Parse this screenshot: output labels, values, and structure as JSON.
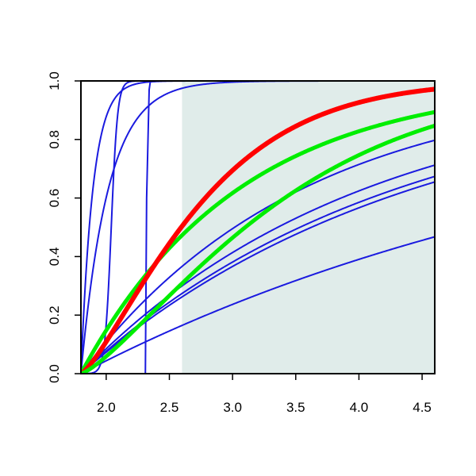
{
  "chart_data": {
    "type": "line",
    "title": "",
    "xlabel": "",
    "ylabel": "",
    "xlim": [
      1.8,
      4.6
    ],
    "ylim": [
      0,
      1
    ],
    "grid": false,
    "x_ticks": [
      "2.0",
      "2.5",
      "3.0",
      "3.5",
      "4.0",
      "4.5"
    ],
    "y_ticks": [
      "0.0",
      "0.2",
      "0.4",
      "0.6",
      "0.8",
      "1.0"
    ],
    "shaded_region": {
      "x_from": 2.6,
      "x_to": 4.6,
      "color": "#e0ecea"
    },
    "colors": {
      "blue": "#1a1adf",
      "red": "#ff0000",
      "green": "#00ee00"
    },
    "series": [
      {
        "color": "blue",
        "width": 2,
        "type": "step",
        "x0": 2.31,
        "x1": 2.35
      },
      {
        "color": "blue",
        "width": 2,
        "type": "logistic",
        "x0": 1.8,
        "m": 2.04,
        "s": 0.025
      },
      {
        "color": "blue",
        "width": 2,
        "type": "exp",
        "x0": 1.8,
        "k": 4.6
      },
      {
        "color": "blue",
        "width": 2,
        "type": "exp",
        "x0": 1.8,
        "k": 10.5
      },
      {
        "color": "blue",
        "width": 2,
        "type": "exp",
        "x0": 1.8,
        "k": 0.225
      },
      {
        "color": "blue",
        "width": 2,
        "type": "exp",
        "x0": 1.8,
        "k": 0.38
      },
      {
        "color": "blue",
        "width": 2,
        "type": "exp",
        "x0": 1.8,
        "k": 0.4
      },
      {
        "color": "blue",
        "width": 2,
        "type": "exp",
        "x0": 1.8,
        "k": 0.445
      },
      {
        "color": "blue",
        "width": 2,
        "type": "exp",
        "x0": 1.8,
        "k": 0.57
      },
      {
        "color": "green",
        "width": 5,
        "type": "exp",
        "x0": 1.8,
        "k": 0.8
      },
      {
        "color": "red",
        "width": 6,
        "type": "weibull",
        "x0": 1.8,
        "lambda": 0.95,
        "shape": 1.3
      },
      {
        "color": "green",
        "width": 5,
        "type": "weibull",
        "x0": 1.8,
        "lambda": 0.58,
        "shape": 1.3
      }
    ]
  }
}
